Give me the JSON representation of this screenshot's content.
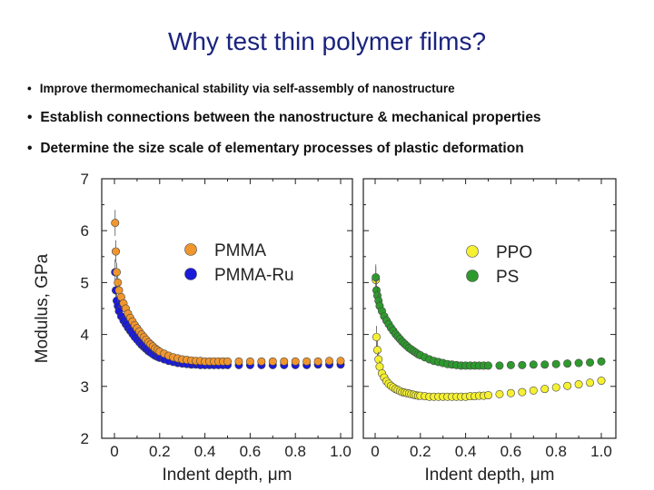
{
  "slide": {
    "title": "Why test thin polymer films?",
    "bullets": [
      "Improve thermomechanical stability via self-assembly of nanostructure",
      "Establish connections between the nanostructure & mechanical properties",
      "Determine the size scale of elementary processes of plastic deformation"
    ],
    "bullet_char": "•"
  },
  "colors": {
    "title": "#1a237e",
    "PMMA": "#f0962e",
    "PMMA-Ru": "#1a1adb",
    "PPO": "#f5f032",
    "PS": "#2e9a2e"
  },
  "chart_data": [
    {
      "type": "scatter",
      "xlabel": "Indent depth, μm",
      "ylabel": "Modulus, GPa",
      "xlim": [
        0,
        1.0
      ],
      "ylim": [
        2,
        7
      ],
      "x_ticks": [
        "0",
        "0.2",
        "0.4",
        "0.6",
        "0.8",
        "1.0"
      ],
      "y_ticks": [
        "2",
        "3",
        "4",
        "5",
        "6",
        "7"
      ],
      "legend": "upper-right",
      "series": [
        {
          "name": "PMMA",
          "color": "#f0962e",
          "x": [
            0.003,
            0.006,
            0.01,
            0.015,
            0.02,
            0.03,
            0.04,
            0.05,
            0.06,
            0.07,
            0.08,
            0.09,
            0.1,
            0.11,
            0.12,
            0.13,
            0.14,
            0.15,
            0.16,
            0.17,
            0.18,
            0.19,
            0.2,
            0.22,
            0.24,
            0.26,
            0.28,
            0.3,
            0.32,
            0.34,
            0.36,
            0.38,
            0.4,
            0.42,
            0.44,
            0.46,
            0.48,
            0.5,
            0.55,
            0.6,
            0.65,
            0.7,
            0.75,
            0.8,
            0.85,
            0.9,
            0.95,
            1.0
          ],
          "y": [
            6.15,
            5.6,
            5.2,
            5.0,
            4.85,
            4.72,
            4.6,
            4.5,
            4.4,
            4.32,
            4.25,
            4.18,
            4.12,
            4.06,
            4.0,
            3.95,
            3.9,
            3.85,
            3.81,
            3.77,
            3.73,
            3.7,
            3.67,
            3.63,
            3.59,
            3.56,
            3.54,
            3.52,
            3.51,
            3.5,
            3.49,
            3.49,
            3.48,
            3.48,
            3.48,
            3.48,
            3.48,
            3.48,
            3.48,
            3.48,
            3.48,
            3.48,
            3.48,
            3.48,
            3.48,
            3.48,
            3.49,
            3.49
          ]
        },
        {
          "name": "PMMA-Ru",
          "color": "#1a1adb",
          "x": [
            0.003,
            0.006,
            0.01,
            0.015,
            0.02,
            0.03,
            0.04,
            0.05,
            0.06,
            0.07,
            0.08,
            0.09,
            0.1,
            0.11,
            0.12,
            0.13,
            0.14,
            0.15,
            0.16,
            0.17,
            0.18,
            0.19,
            0.2,
            0.22,
            0.24,
            0.26,
            0.28,
            0.3,
            0.32,
            0.34,
            0.36,
            0.38,
            0.4,
            0.42,
            0.44,
            0.46,
            0.48,
            0.5,
            0.55,
            0.6,
            0.65,
            0.7,
            0.75,
            0.8,
            0.85,
            0.9,
            0.95,
            1.0
          ],
          "y": [
            5.2,
            4.85,
            4.65,
            4.55,
            4.45,
            4.35,
            4.27,
            4.2,
            4.13,
            4.07,
            4.01,
            3.95,
            3.9,
            3.85,
            3.8,
            3.76,
            3.72,
            3.68,
            3.65,
            3.62,
            3.59,
            3.57,
            3.55,
            3.52,
            3.49,
            3.47,
            3.45,
            3.44,
            3.43,
            3.42,
            3.42,
            3.41,
            3.41,
            3.41,
            3.41,
            3.41,
            3.41,
            3.41,
            3.41,
            3.41,
            3.41,
            3.41,
            3.41,
            3.41,
            3.41,
            3.42,
            3.42,
            3.42
          ]
        }
      ]
    },
    {
      "type": "scatter",
      "xlabel": "Indent depth, μm",
      "xlim": [
        0,
        1.0
      ],
      "ylim": [
        2,
        7
      ],
      "x_ticks": [
        "0",
        "0.2",
        "0.4",
        "0.6",
        "0.8",
        "1.0"
      ],
      "legend": "upper-right",
      "series": [
        {
          "name": "PPO",
          "color": "#f5f032",
          "x": [
            0.003,
            0.006,
            0.01,
            0.015,
            0.02,
            0.03,
            0.04,
            0.05,
            0.06,
            0.07,
            0.08,
            0.09,
            0.1,
            0.11,
            0.12,
            0.13,
            0.14,
            0.15,
            0.16,
            0.17,
            0.18,
            0.19,
            0.2,
            0.22,
            0.24,
            0.26,
            0.28,
            0.3,
            0.32,
            0.34,
            0.36,
            0.38,
            0.4,
            0.42,
            0.44,
            0.46,
            0.48,
            0.5,
            0.55,
            0.6,
            0.65,
            0.7,
            0.75,
            0.8,
            0.85,
            0.9,
            0.95,
            1.0
          ],
          "y": [
            5.05,
            3.95,
            3.7,
            3.52,
            3.38,
            3.25,
            3.17,
            3.1,
            3.05,
            3.01,
            2.98,
            2.95,
            2.93,
            2.91,
            2.89,
            2.88,
            2.87,
            2.86,
            2.85,
            2.84,
            2.83,
            2.82,
            2.82,
            2.81,
            2.8,
            2.8,
            2.8,
            2.8,
            2.8,
            2.8,
            2.8,
            2.8,
            2.8,
            2.81,
            2.81,
            2.82,
            2.82,
            2.83,
            2.85,
            2.87,
            2.89,
            2.92,
            2.95,
            2.98,
            3.01,
            3.04,
            3.07,
            3.11
          ]
        },
        {
          "name": "PS",
          "color": "#2e9a2e",
          "x": [
            0.003,
            0.006,
            0.01,
            0.015,
            0.02,
            0.03,
            0.04,
            0.05,
            0.06,
            0.07,
            0.08,
            0.09,
            0.1,
            0.11,
            0.12,
            0.13,
            0.14,
            0.15,
            0.16,
            0.17,
            0.18,
            0.19,
            0.2,
            0.22,
            0.24,
            0.26,
            0.28,
            0.3,
            0.32,
            0.34,
            0.36,
            0.38,
            0.4,
            0.42,
            0.44,
            0.46,
            0.48,
            0.5,
            0.55,
            0.6,
            0.65,
            0.7,
            0.75,
            0.8,
            0.85,
            0.9,
            0.95,
            1.0
          ],
          "y": [
            5.1,
            4.85,
            4.75,
            4.65,
            4.55,
            4.45,
            4.35,
            4.27,
            4.2,
            4.13,
            4.07,
            4.01,
            3.96,
            3.91,
            3.86,
            3.82,
            3.78,
            3.74,
            3.71,
            3.68,
            3.65,
            3.62,
            3.6,
            3.56,
            3.52,
            3.49,
            3.47,
            3.45,
            3.43,
            3.42,
            3.41,
            3.4,
            3.4,
            3.4,
            3.4,
            3.4,
            3.4,
            3.4,
            3.4,
            3.41,
            3.41,
            3.42,
            3.42,
            3.43,
            3.44,
            3.45,
            3.46,
            3.48
          ]
        }
      ]
    }
  ]
}
